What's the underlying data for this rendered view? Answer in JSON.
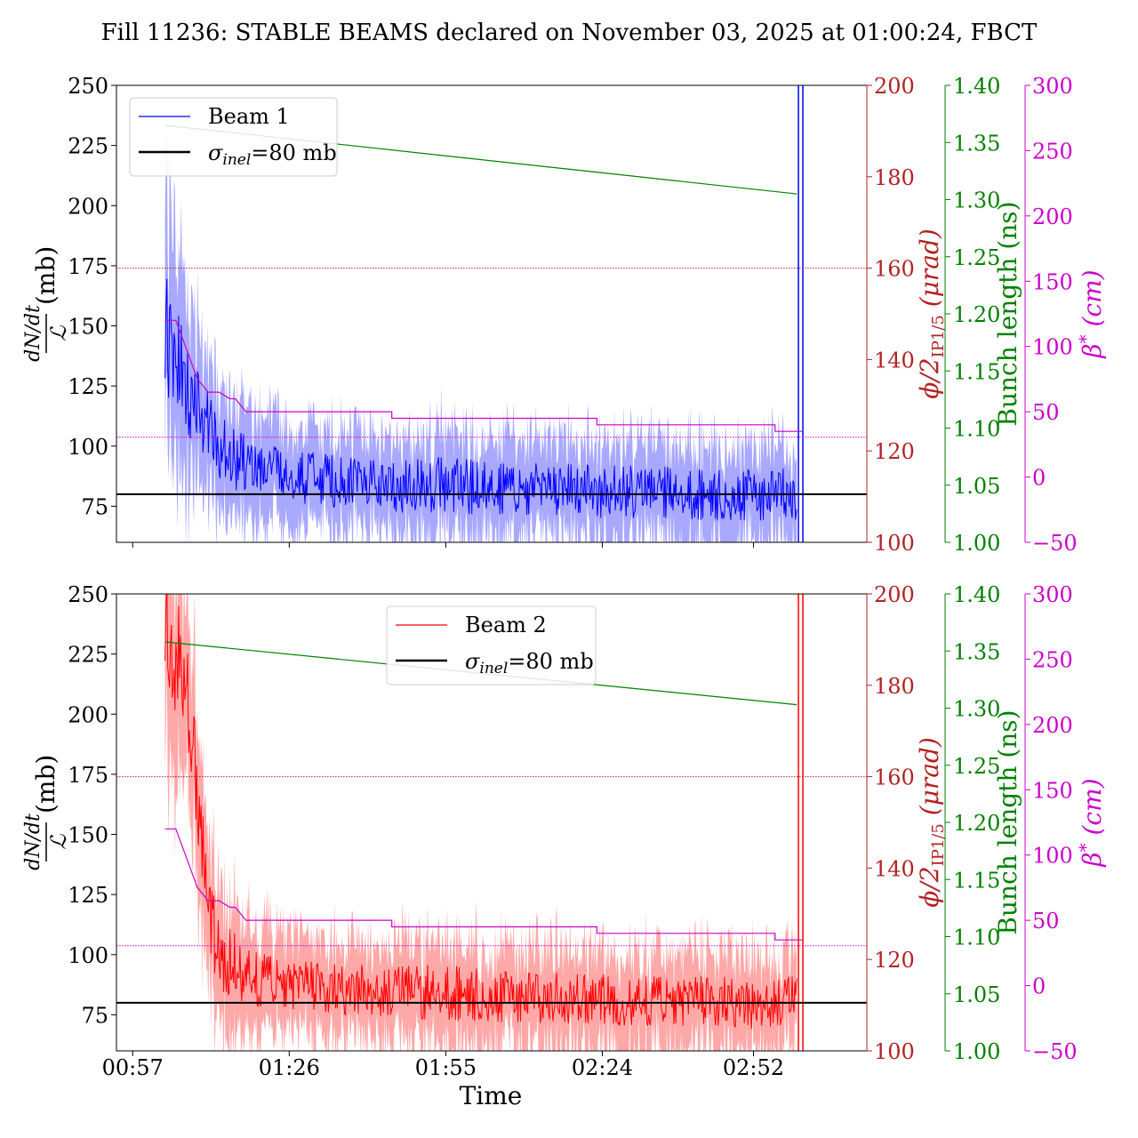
{
  "figure": {
    "title": "Fill 11236: STABLE BEAMS declared on November 03, 2025 at 01:00:24, FBCT",
    "xlabel": "Time",
    "x_tick_labels": [
      "00:57",
      "01:26",
      "01:55",
      "02:24",
      "02:52"
    ]
  },
  "axes": {
    "left": {
      "label_num": "dN/dt",
      "label_den": "ℒ",
      "label_unit": "(mb)",
      "ticks": [
        75,
        100,
        125,
        150,
        175,
        200,
        225,
        250
      ],
      "ylim": [
        60,
        250
      ]
    },
    "angle": {
      "label": "ϕ/2",
      "label_sub": "IP1/5",
      "label_unit": " (μrad)",
      "ticks": [
        100,
        120,
        140,
        160,
        180,
        200
      ],
      "ylim": [
        100,
        200
      ],
      "color": "#b22222"
    },
    "bunch": {
      "label": "Bunch length (ns)",
      "ticks": [
        "1.00",
        "1.05",
        "1.10",
        "1.15",
        "1.20",
        "1.25",
        "1.30",
        "1.35",
        "1.40"
      ],
      "ylim": [
        1.0,
        1.4
      ],
      "color": "#008000"
    },
    "beta": {
      "label": "β",
      "label_sup": "*",
      "label_unit": " (cm)",
      "ticks": [
        "−50",
        "0",
        "50",
        "100",
        "150",
        "200",
        "250",
        "300"
      ],
      "ylim": [
        -50,
        300
      ],
      "color": "#cc00cc"
    }
  },
  "legends": {
    "top": {
      "beam_label": "Beam 1",
      "sigma_sym": "σ",
      "sigma_sub": "inel",
      "sigma_text": "=80 mb"
    },
    "bottom": {
      "beam_label": "Beam 2",
      "sigma_sym": "σ",
      "sigma_sub": "inel",
      "sigma_text": "=80 mb"
    }
  },
  "chart_data": [
    {
      "type": "line",
      "title": "Fill 11236: STABLE BEAMS declared on November 03, 2025 at 01:00:24, FBCT",
      "panel": "top",
      "xlabel": "Time",
      "x_range": [
        "00:54",
        "03:13"
      ],
      "x_ticks": [
        "00:57",
        "01:26",
        "01:55",
        "02:24",
        "02:52"
      ],
      "series": [
        {
          "name": "Beam 1",
          "axis": "left",
          "color": "#0000ff",
          "band_color": "#9999ff",
          "x": [
            "01:03",
            "01:05",
            "01:07",
            "01:10",
            "01:13",
            "01:16",
            "01:20",
            "01:25",
            "01:35",
            "01:45",
            "01:55",
            "02:05",
            "02:15",
            "02:25",
            "02:35",
            "02:45",
            "02:55",
            "03:00"
          ],
          "values": [
            145,
            135,
            125,
            110,
            100,
            95,
            90,
            88,
            85,
            83,
            84,
            82,
            82,
            81,
            81,
            80,
            80,
            80
          ],
          "band_half_width": [
            50,
            45,
            38,
            30,
            26,
            24,
            22,
            20,
            20,
            20,
            22,
            20,
            20,
            20,
            20,
            20,
            20,
            20
          ]
        },
        {
          "name": "",
          "axis": "left",
          "color": "#000000",
          "y_const": 80
        },
        {
          "name": "",
          "axis": "bunch",
          "color": "#008000",
          "x": [
            "01:03",
            "03:00"
          ],
          "values": [
            1.365,
            1.305
          ]
        },
        {
          "name": "",
          "axis": "beta",
          "color": "#cc00cc",
          "x": [
            "01:03",
            "01:05",
            "01:09",
            "01:11",
            "01:13",
            "01:15",
            "01:16",
            "01:18",
            "01:20",
            "01:45",
            "01:45",
            "02:23",
            "02:23",
            "02:56",
            "02:56",
            "03:01"
          ],
          "values": [
            120,
            120,
            75,
            65,
            65,
            60,
            60,
            50,
            50,
            50,
            45,
            45,
            40,
            40,
            35,
            35
          ]
        },
        {
          "name": "",
          "axis": "angle",
          "color": "#b22222",
          "y_const": 160,
          "style": "dotted"
        },
        {
          "name": "",
          "axis": "angle",
          "color": "#cc00cc",
          "y_const": 123,
          "style": "dotted"
        }
      ],
      "ylim": [
        60,
        250
      ]
    },
    {
      "type": "line",
      "panel": "bottom",
      "xlabel": "Time",
      "x_range": [
        "00:54",
        "03:13"
      ],
      "x_ticks": [
        "00:57",
        "01:26",
        "01:55",
        "02:24",
        "02:52"
      ],
      "series": [
        {
          "name": "Beam 2",
          "axis": "left",
          "color": "#ff0000",
          "band_color": "#ff9999",
          "x": [
            "01:03",
            "01:05",
            "01:07",
            "01:09",
            "01:11",
            "01:13",
            "01:16",
            "01:20",
            "01:25",
            "01:35",
            "01:45",
            "01:55",
            "02:05",
            "02:15",
            "02:25",
            "02:35",
            "02:45",
            "02:55",
            "03:00"
          ],
          "values": [
            232,
            225,
            210,
            170,
            120,
            100,
            95,
            90,
            88,
            86,
            85,
            84,
            82,
            82,
            81,
            80,
            80,
            80,
            80
          ],
          "band_half_width": [
            50,
            45,
            40,
            38,
            32,
            28,
            25,
            22,
            20,
            20,
            20,
            22,
            20,
            20,
            20,
            20,
            20,
            20,
            20
          ]
        },
        {
          "name": "",
          "axis": "left",
          "color": "#000000",
          "y_const": 80
        },
        {
          "name": "",
          "axis": "bunch",
          "color": "#008000",
          "x": [
            "01:03",
            "03:00"
          ],
          "values": [
            1.358,
            1.303
          ]
        },
        {
          "name": "",
          "axis": "beta",
          "color": "#cc00cc",
          "x": [
            "01:03",
            "01:05",
            "01:09",
            "01:11",
            "01:13",
            "01:15",
            "01:16",
            "01:18",
            "01:20",
            "01:45",
            "01:45",
            "02:23",
            "02:23",
            "02:56",
            "02:56",
            "03:01"
          ],
          "values": [
            120,
            120,
            75,
            65,
            65,
            60,
            60,
            50,
            50,
            50,
            45,
            45,
            40,
            40,
            35,
            35
          ]
        },
        {
          "name": "",
          "axis": "angle",
          "color": "#b22222",
          "y_const": 160,
          "style": "dotted"
        },
        {
          "name": "",
          "axis": "angle",
          "color": "#cc00cc",
          "y_const": 123,
          "style": "dotted"
        }
      ],
      "ylim": [
        60,
        250
      ]
    }
  ]
}
